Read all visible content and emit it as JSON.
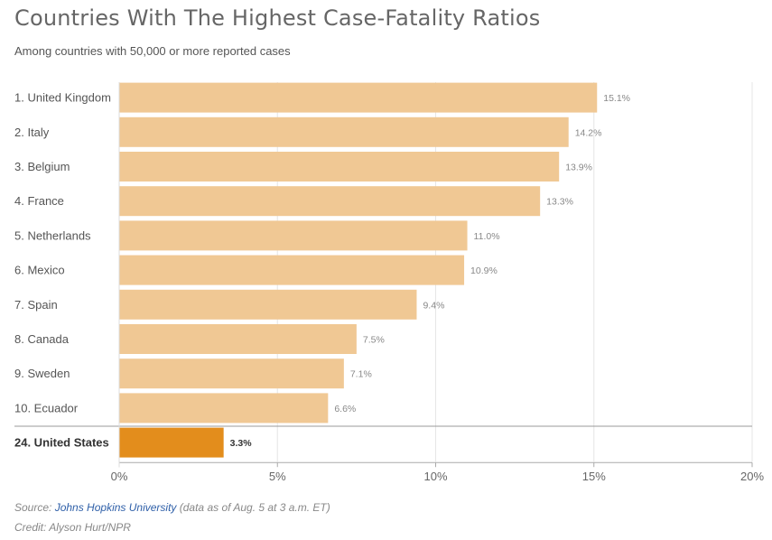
{
  "header": {
    "title": "Countries With The Highest Case-Fatality Ratios",
    "subtitle": "Among countries with 50,000 or more reported cases"
  },
  "footer": {
    "source_prefix": "Source: ",
    "source_link": "Johns Hopkins University",
    "source_suffix": " (data as of Aug. 5 at 3 a.m. ET)",
    "credit": "Credit: Alyson Hurt/NPR"
  },
  "colors": {
    "bar": "#f0c894",
    "highlight_bar": "#e38d1c",
    "grid": "#e6e6e6",
    "axis": "#aaaaaa",
    "separator": "#999999"
  },
  "chart_data": {
    "type": "bar",
    "orientation": "horizontal",
    "title": "Countries With The Highest Case-Fatality Ratios",
    "subtitle": "Among countries with 50,000 or more reported cases",
    "xlabel": "",
    "ylabel": "",
    "xlim": [
      0,
      20
    ],
    "xticks": [
      0,
      5,
      10,
      15,
      20
    ],
    "xtick_labels": [
      "0%",
      "5%",
      "10%",
      "15%",
      "20%"
    ],
    "grid": true,
    "categories": [
      "1. United Kingdom",
      "2. Italy",
      "3. Belgium",
      "4. France",
      "5. Netherlands",
      "6. Mexico",
      "7. Spain",
      "8. Canada",
      "9. Sweden",
      "10. Ecuador",
      "24. United States"
    ],
    "values": [
      15.1,
      14.2,
      13.9,
      13.3,
      11.0,
      10.9,
      9.4,
      7.5,
      7.1,
      6.6,
      3.3
    ],
    "value_labels": [
      "15.1%",
      "14.2%",
      "13.9%",
      "13.3%",
      "11.0%",
      "10.9%",
      "9.4%",
      "7.5%",
      "7.1%",
      "6.6%",
      "3.3%"
    ],
    "highlighted": [
      false,
      false,
      false,
      false,
      false,
      false,
      false,
      false,
      false,
      false,
      true
    ],
    "unit": "%"
  }
}
